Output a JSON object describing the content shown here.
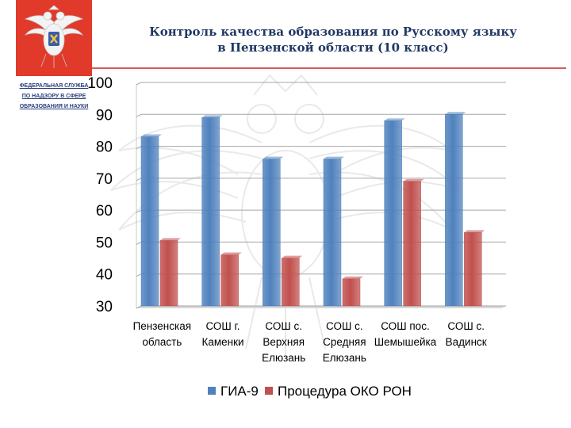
{
  "header": {
    "title_line1": "Контроль качества образования по Русскому языку",
    "title_line2": "в Пензенской области (10 класс)",
    "agency_line1": "ФЕДЕРАЛЬНАЯ СЛУЖБА",
    "agency_line2": "ПО НАДЗОРУ В СФЕРЕ",
    "agency_line3": "ОБРАЗОВАНИЯ И НАУКИ",
    "logo_icon": "double-headed-eagle-emblem",
    "brand_color": "#e13a2b"
  },
  "chart_data": {
    "type": "bar",
    "title": "",
    "xlabel": "",
    "ylabel": "",
    "ylim": [
      30,
      100
    ],
    "yticks": [
      30,
      40,
      50,
      60,
      70,
      80,
      90,
      100
    ],
    "grid": true,
    "legend_position": "bottom",
    "categories": [
      [
        "Пензенская",
        "область"
      ],
      [
        "СОШ г.",
        "Каменки"
      ],
      [
        "СОШ с.",
        "Верхняя",
        "Елюзань"
      ],
      [
        "СОШ с.",
        "Средняя",
        "Елюзань"
      ],
      [
        "СОШ пос.",
        "Шемышейка"
      ],
      [
        "СОШ с.",
        "Вадинск"
      ]
    ],
    "series": [
      {
        "name": "ГИА-9",
        "color": "#4f81bd",
        "values": [
          83,
          89,
          76,
          76,
          88,
          90
        ]
      },
      {
        "name": "Процедура ОКО РОН",
        "color": "#c0504d",
        "values": [
          50.5,
          46,
          45,
          38.5,
          69,
          53
        ]
      }
    ]
  }
}
